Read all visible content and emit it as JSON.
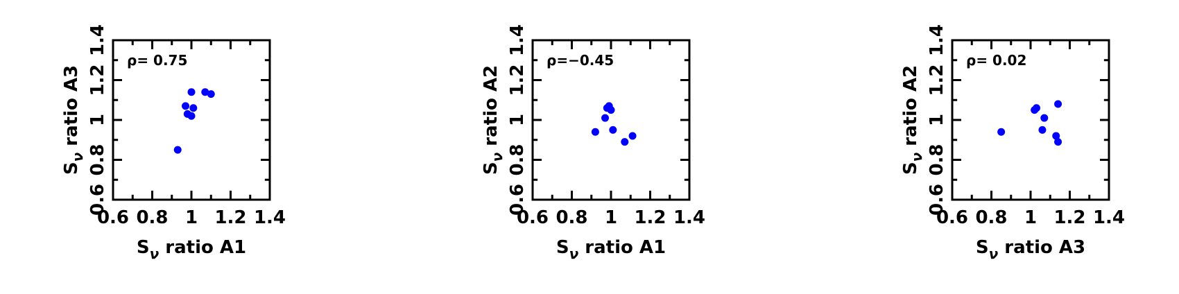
{
  "chart_data": [
    {
      "type": "scatter",
      "xlabel": "S_ν ratio A1",
      "ylabel": "S_ν ratio A3",
      "annotation": "ρ= 0.75",
      "xlim": [
        0.6,
        1.4
      ],
      "ylim": [
        0.6,
        1.4
      ],
      "xticks": [
        0.6,
        0.8,
        1.0,
        1.2,
        1.4
      ],
      "yticks": [
        0.6,
        0.8,
        1.0,
        1.2,
        1.4
      ],
      "xtick_labels": [
        "0.6",
        "0.8",
        "1",
        "1.2",
        "1.4"
      ],
      "ytick_labels": [
        "0.6",
        "0.8",
        "1",
        "1.2",
        "1.4"
      ],
      "marker_color": "#0000ff",
      "points": [
        {
          "x": 0.93,
          "y": 0.85
        },
        {
          "x": 0.97,
          "y": 1.07
        },
        {
          "x": 0.98,
          "y": 1.03
        },
        {
          "x": 1.0,
          "y": 1.14
        },
        {
          "x": 1.0,
          "y": 1.02
        },
        {
          "x": 1.01,
          "y": 1.06
        },
        {
          "x": 1.07,
          "y": 1.14
        },
        {
          "x": 1.1,
          "y": 1.13
        }
      ]
    },
    {
      "type": "scatter",
      "xlabel": "S_ν ratio A1",
      "ylabel": "S_ν ratio A2",
      "annotation": "ρ=−0.45",
      "xlim": [
        0.6,
        1.4
      ],
      "ylim": [
        0.6,
        1.4
      ],
      "xticks": [
        0.6,
        0.8,
        1.0,
        1.2,
        1.4
      ],
      "yticks": [
        0.6,
        0.8,
        1.0,
        1.2,
        1.4
      ],
      "xtick_labels": [
        "0.6",
        "0.8",
        "1",
        "1.2",
        "1.4"
      ],
      "ytick_labels": [
        "0.6",
        "0.8",
        "1",
        "1.2",
        "1.4"
      ],
      "marker_color": "#0000ff",
      "points": [
        {
          "x": 0.92,
          "y": 0.94
        },
        {
          "x": 0.97,
          "y": 1.01
        },
        {
          "x": 0.98,
          "y": 1.06
        },
        {
          "x": 0.99,
          "y": 1.07
        },
        {
          "x": 1.0,
          "y": 1.05
        },
        {
          "x": 1.01,
          "y": 0.95
        },
        {
          "x": 1.07,
          "y": 0.89
        },
        {
          "x": 1.11,
          "y": 0.92
        }
      ]
    },
    {
      "type": "scatter",
      "xlabel": "S_ν ratio A3",
      "ylabel": "S_ν ratio A2",
      "annotation": "ρ= 0.02",
      "xlim": [
        0.6,
        1.4
      ],
      "ylim": [
        0.6,
        1.4
      ],
      "xticks": [
        0.6,
        0.8,
        1.0,
        1.2,
        1.4
      ],
      "yticks": [
        0.6,
        0.8,
        1.0,
        1.2,
        1.4
      ],
      "xtick_labels": [
        "0.6",
        "0.8",
        "1",
        "1.2",
        "1.4"
      ],
      "ytick_labels": [
        "0.6",
        "0.8",
        "1",
        "1.2",
        "1.4"
      ],
      "marker_color": "#0000ff",
      "points": [
        {
          "x": 0.85,
          "y": 0.94
        },
        {
          "x": 1.02,
          "y": 1.05
        },
        {
          "x": 1.03,
          "y": 1.06
        },
        {
          "x": 1.06,
          "y": 0.95
        },
        {
          "x": 1.07,
          "y": 1.01
        },
        {
          "x": 1.13,
          "y": 0.92
        },
        {
          "x": 1.14,
          "y": 1.08
        },
        {
          "x": 1.14,
          "y": 0.89
        }
      ]
    }
  ]
}
